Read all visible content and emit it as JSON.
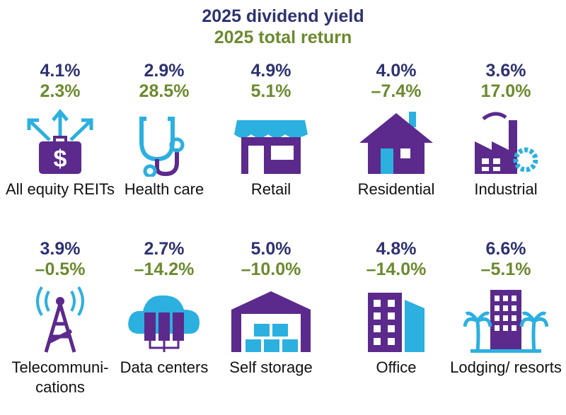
{
  "legend": {
    "yield_label": "2025 dividend yield",
    "return_label": "2025 total return"
  },
  "colors": {
    "yield": "#2e3270",
    "return": "#6b8a2e",
    "icon_primary": "#5b2a8c",
    "icon_accent": "#2bb0e0"
  },
  "sectors": [
    {
      "label": "All equity REITs",
      "yield": "4.1%",
      "return": "2.3%",
      "icon": "briefcase-dollar-arrows-icon"
    },
    {
      "label": "Health care",
      "yield": "2.9%",
      "return": "28.5%",
      "icon": "stethoscope-icon"
    },
    {
      "label": "Retail",
      "yield": "4.9%",
      "return": "5.1%",
      "icon": "storefront-icon"
    },
    {
      "label": "Residential",
      "yield": "4.0%",
      "return": "–7.4%",
      "icon": "house-icon"
    },
    {
      "label": "Industrial",
      "yield": "3.6%",
      "return": "17.0%",
      "icon": "factory-icon"
    },
    {
      "label": "Telecommuni-cations",
      "yield": "3.9%",
      "return": "–0.5%",
      "icon": "cell-tower-icon"
    },
    {
      "label": "Data centers",
      "yield": "2.7%",
      "return": "–14.2%",
      "icon": "cloud-server-icon"
    },
    {
      "label": "Self storage",
      "yield": "5.0%",
      "return": "–10.0%",
      "icon": "storage-warehouse-icon"
    },
    {
      "label": "Office",
      "yield": "4.8%",
      "return": "–14.0%",
      "icon": "office-building-icon"
    },
    {
      "label": "Lodging/ resorts",
      "yield": "6.6%",
      "return": "–5.1%",
      "icon": "hotel-palm-icon"
    }
  ]
}
